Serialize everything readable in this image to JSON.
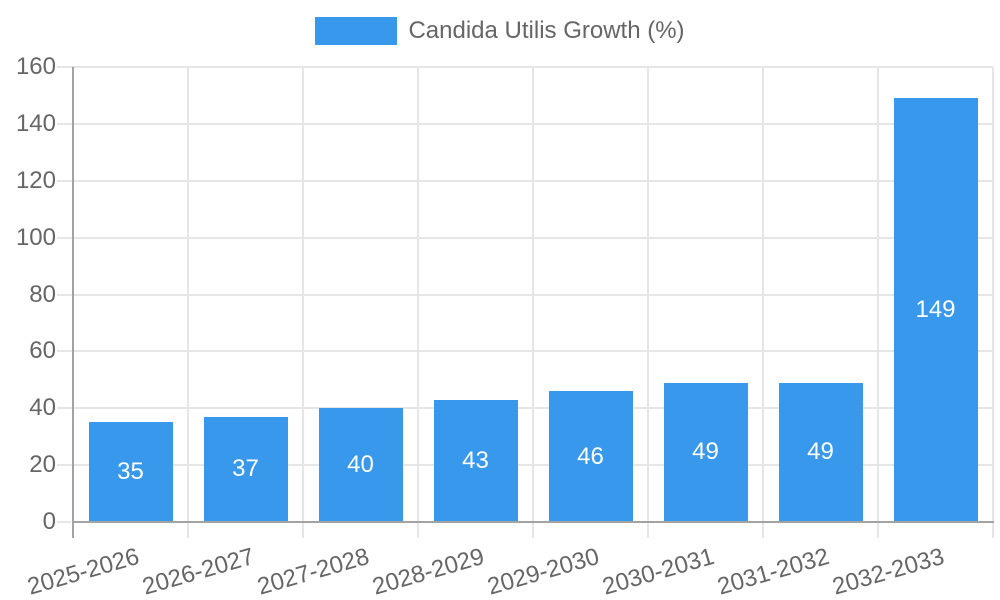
{
  "chart_data": {
    "type": "bar",
    "title": "Candida Utilis Growth (%)",
    "legend": {
      "position": "top",
      "label": "Candida Utilis Growth (%)"
    },
    "categories": [
      "2025-2026",
      "2026-2027",
      "2027-2028",
      "2028-2029",
      "2029-2030",
      "2030-2031",
      "2031-2032",
      "2032-2033"
    ],
    "values": [
      35,
      37,
      40,
      43,
      46,
      49,
      49,
      149
    ],
    "xlabel": "",
    "ylabel": "",
    "ylim": [
      0,
      160
    ],
    "yticks": [
      0,
      20,
      40,
      60,
      80,
      100,
      120,
      140,
      160
    ],
    "grid": true,
    "colors": {
      "bar": "#3898ec",
      "bar_label": "#ffffff",
      "grid": "#e6e6e6",
      "axis": "#a3a3a3",
      "text": "#666666",
      "background": "#ffffff"
    }
  }
}
